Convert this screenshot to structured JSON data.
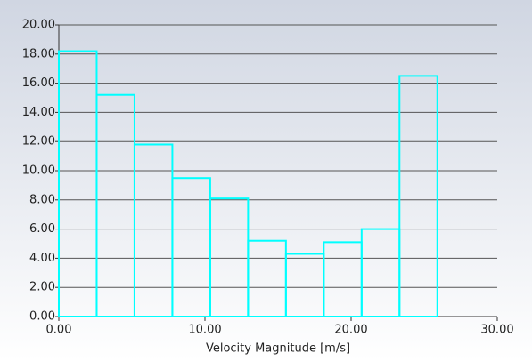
{
  "chart_data": {
    "type": "histogram",
    "xlabel": "Velocity Magnitude [m/s]",
    "bins": [
      0,
      2.59,
      5.18,
      7.77,
      10.36,
      12.95,
      15.54,
      18.13,
      20.72,
      23.31,
      25.9
    ],
    "values": [
      18.2,
      15.2,
      11.8,
      9.5,
      8.1,
      5.2,
      4.3,
      5.1,
      6.0,
      16.5
    ],
    "color": "#00ffff",
    "xlim": [
      0,
      30
    ],
    "xticks": [
      {
        "value": 0,
        "label": "0.00"
      },
      {
        "value": 10,
        "label": "10.00"
      },
      {
        "value": 20,
        "label": "20.00"
      },
      {
        "value": 30,
        "label": "30.00"
      }
    ],
    "ylim": [
      0,
      20
    ],
    "yticks": [
      {
        "value": 0,
        "label": "0.00"
      },
      {
        "value": 2,
        "label": "2.00"
      },
      {
        "value": 4,
        "label": "4.00"
      },
      {
        "value": 6,
        "label": "6.00"
      },
      {
        "value": 8,
        "label": "8.00"
      },
      {
        "value": 10,
        "label": "10.00"
      },
      {
        "value": 12,
        "label": "12.00"
      },
      {
        "value": 14,
        "label": "14.00"
      },
      {
        "value": 16,
        "label": "16.00"
      },
      {
        "value": 18,
        "label": "18.00"
      },
      {
        "value": 20,
        "label": "20.00"
      }
    ],
    "grid": true
  }
}
